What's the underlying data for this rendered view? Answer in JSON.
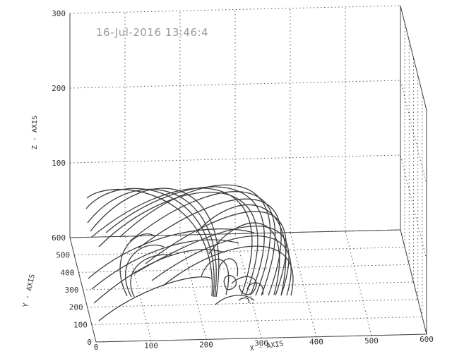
{
  "chart_data": {
    "type": "line",
    "timestamp": "16-Jul-2016 13:46:4",
    "xlabel": "X - AXIS",
    "ylabel": "Y - AXIS",
    "zlabel": "Z - AXIS",
    "xlim": [
      0,
      600
    ],
    "ylim": [
      0,
      600
    ],
    "zlim": [
      0,
      300
    ],
    "x_ticks": [
      "0",
      "100",
      "200",
      "300",
      "400",
      "500",
      "600"
    ],
    "y_ticks": [
      "0",
      "100",
      "200",
      "300",
      "400",
      "500",
      "600"
    ],
    "z_ticks": [
      "0",
      "100",
      "200",
      "300"
    ],
    "grid": true,
    "colors": {
      "lines": "#3c3c3c",
      "stamp": "#9a9a9a",
      "grid": "#555555"
    }
  }
}
